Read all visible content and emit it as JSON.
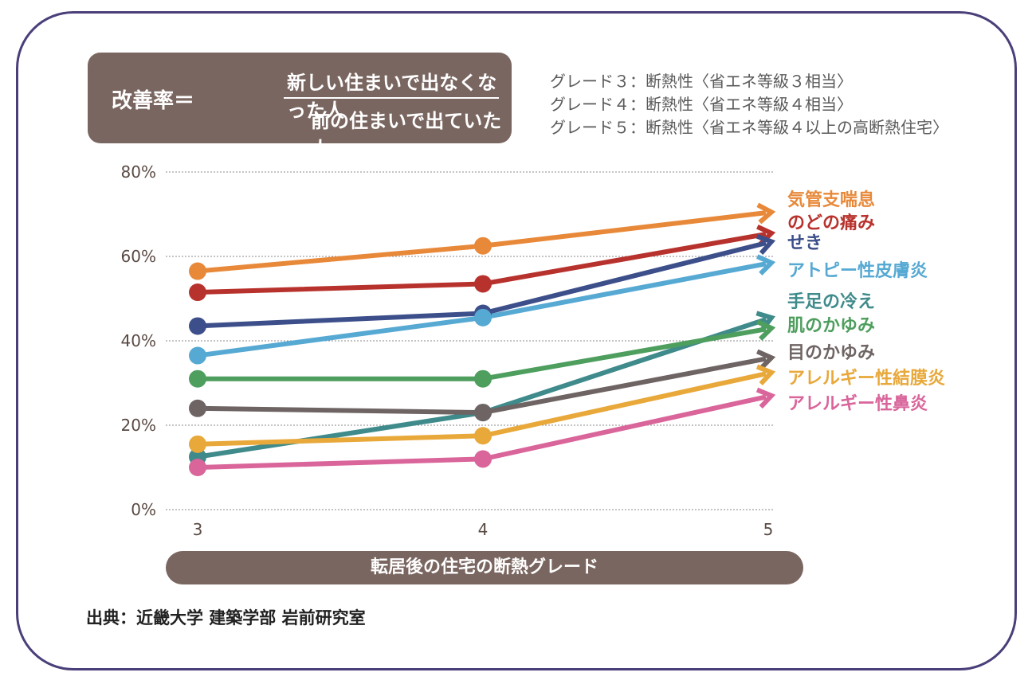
{
  "formula": {
    "lhs": "改善率＝",
    "numerator": "新しい住まいで出なくなった人",
    "denominator": "前の住まいで出ていた人"
  },
  "grades": [
    "グレード３：断熱性〈省エネ等級３相当〉",
    "グレード４：断熱性〈省エネ等級４相当〉",
    "グレード５：断熱性〈省エネ等級４以上の高断熱住宅〉"
  ],
  "source": "出典：近畿大学 建築学部 岩前研究室",
  "chart_data": {
    "type": "line",
    "xlabel": "転居後の住宅の断熱グレード",
    "ylabel": "",
    "categories": [
      "3",
      "4",
      "5"
    ],
    "ylim": [
      0,
      80
    ],
    "yticks": [
      "0%",
      "20%",
      "40%",
      "60%",
      "80%"
    ],
    "ytick_values": [
      0,
      20,
      40,
      60,
      80
    ],
    "grid": "horizontal dotted",
    "legend": "right",
    "series": [
      {
        "name": "気管支喘息",
        "color": "#e8893a",
        "values": [
          56.5,
          62.5,
          70.5
        ]
      },
      {
        "name": "のどの痛み",
        "color": "#b8322d",
        "values": [
          51.5,
          53.5,
          65.5
        ]
      },
      {
        "name": "せき",
        "color": "#3d4f8a",
        "values": [
          43.5,
          46.5,
          63.5
        ]
      },
      {
        "name": "アトピー性皮膚炎",
        "color": "#56a9d3",
        "values": [
          36.5,
          45.5,
          58.5
        ]
      },
      {
        "name": "手足の冷え",
        "color": "#3f8a8b",
        "values": [
          12.5,
          23.0,
          45.5
        ]
      },
      {
        "name": "肌のかゆみ",
        "color": "#4e9e5e",
        "values": [
          31.0,
          31.0,
          43.0
        ]
      },
      {
        "name": "目のかゆみ",
        "color": "#6e6463",
        "values": [
          24.0,
          23.0,
          36.0
        ]
      },
      {
        "name": "アレルギー性結膜炎",
        "color": "#e8a83a",
        "values": [
          15.5,
          17.5,
          32.5
        ]
      },
      {
        "name": "アレルギー性鼻炎",
        "color": "#d9659a",
        "values": [
          10.0,
          12.0,
          27.0
        ]
      }
    ]
  }
}
